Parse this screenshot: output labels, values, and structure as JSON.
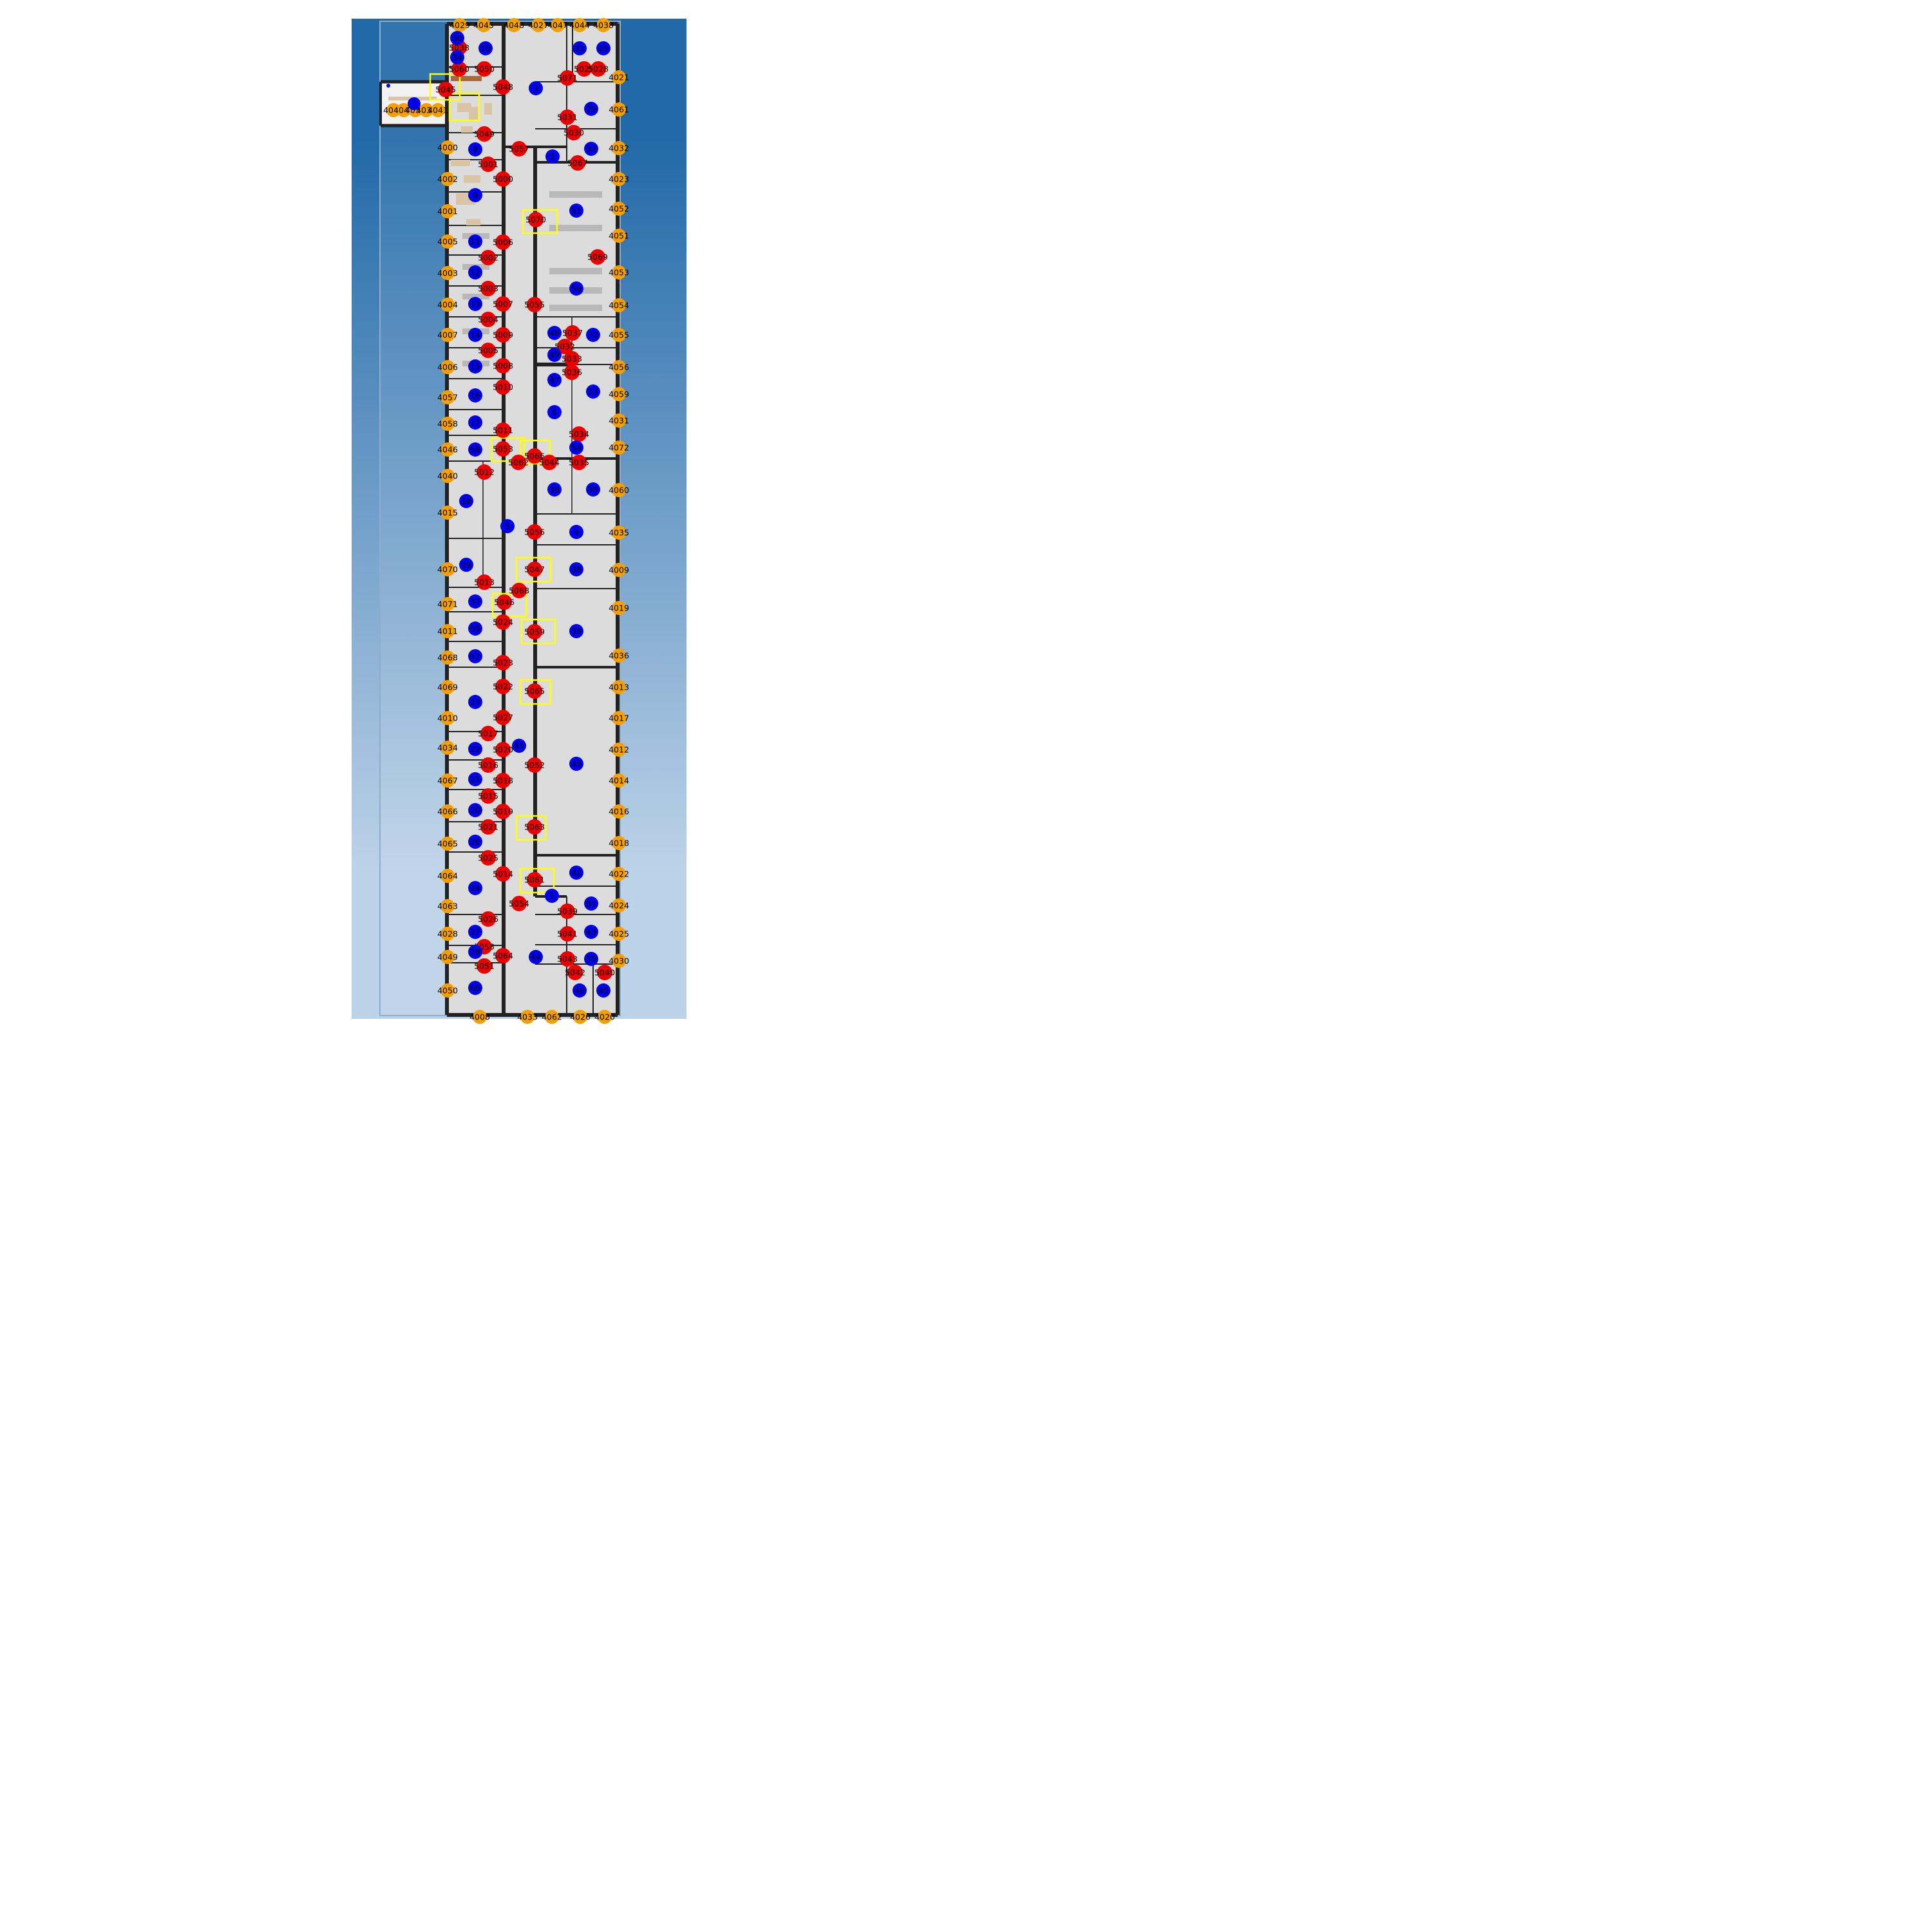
{
  "colors": {
    "sky_top": "#2169a8",
    "sky_bottom": "#bcd2e8",
    "floor": "#dcdcdc",
    "wall": "#222222",
    "door_node": "#f5a000",
    "waypoint_node": "#ee0000",
    "room_node": "#0000ee",
    "highlight_box": "#ffff00"
  },
  "legend": {
    "door_node": "orange circle",
    "waypoint_node": "red circle",
    "room_node": "blue circle",
    "highlight_box": "yellow square"
  },
  "door_nodes": [
    "4029",
    "4045",
    "4048",
    "4027",
    "4047",
    "4044",
    "4038",
    "4021",
    "4061",
    "4032",
    "4023",
    "4052",
    "4051",
    "4053",
    "4054",
    "4055",
    "4056",
    "4059",
    "4031",
    "4072",
    "4060",
    "4035",
    "4009",
    "4019",
    "4036",
    "4013",
    "4017",
    "4012",
    "4014",
    "4016",
    "4018",
    "4022",
    "4024",
    "4025",
    "4030",
    "4000",
    "4002",
    "4001",
    "4005",
    "4003",
    "4004",
    "4007",
    "4006",
    "4057",
    "4058",
    "4046",
    "4040",
    "4015",
    "4070",
    "4071",
    "4011",
    "4068",
    "4069",
    "4010",
    "4034",
    "4067",
    "4066",
    "4065",
    "4064",
    "4063",
    "4028",
    "4049",
    "4050",
    "4008",
    "4033",
    "4062",
    "4026",
    "4020",
    "4043",
    "4042",
    "4037",
    "4039",
    "4041"
  ],
  "waypoint_nodes": [
    "5038",
    "5060",
    "5050",
    "5045",
    "5048",
    "5071",
    "5029",
    "5028",
    "5031",
    "5030",
    "5049",
    "5057",
    "5067",
    "5001",
    "5000",
    "5070",
    "5006",
    "5002",
    "5069",
    "5003",
    "5007",
    "5055",
    "5004",
    "5009",
    "5037",
    "5032",
    "5005",
    "5033",
    "5008",
    "5036",
    "5010",
    "5011",
    "5034",
    "5053",
    "5066",
    "5062",
    "5044",
    "5035",
    "5012",
    "5056",
    "5047",
    "5013",
    "5068",
    "5046",
    "5024",
    "5059",
    "5023",
    "5022",
    "5065",
    "5027",
    "5017",
    "5020",
    "5052",
    "5016",
    "5018",
    "5015",
    "5019",
    "5021",
    "5063",
    "5025",
    "5014",
    "5061",
    "5054",
    "5039",
    "5026",
    "5041",
    "5058",
    "5064",
    "5043",
    "5051",
    "5042",
    "5040"
  ],
  "room_nodes": [
    "30",
    "10",
    "31",
    "25",
    "34",
    "3",
    "29",
    "8",
    "33",
    "2",
    "9",
    "51",
    "11",
    "12",
    "50",
    "13",
    "14",
    "48",
    "32",
    "15",
    "49",
    "47",
    "53",
    "16",
    "6",
    "17",
    "54",
    "58",
    "36",
    "35",
    "18",
    "5",
    "4",
    "19",
    "38",
    "37",
    "39",
    "59",
    "57",
    "23",
    "41",
    "22",
    "40",
    "21",
    "20",
    "26",
    "24",
    "42",
    "1",
    "61",
    "27",
    "43",
    "28",
    "44",
    "55",
    "60",
    "46",
    "45"
  ],
  "highlight_boxes": [
    "5045",
    "5070",
    "5053",
    "5066",
    "5047",
    "5046",
    "5059",
    "5065",
    "5063",
    "5061"
  ]
}
